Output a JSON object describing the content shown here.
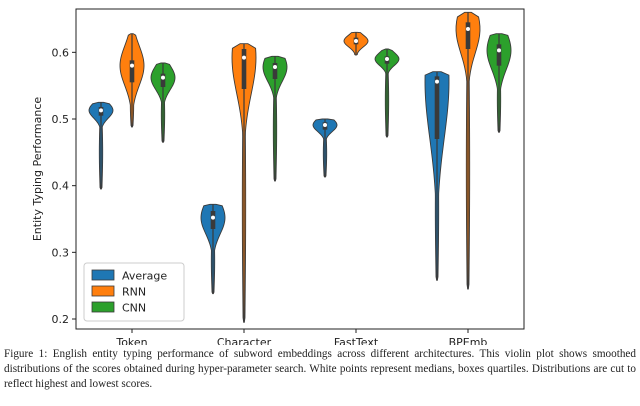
{
  "chart_data": {
    "type": "violin",
    "title": "",
    "xlabel": "",
    "ylabel": "Entity Typing Performance",
    "ylim": [
      0.185,
      0.665
    ],
    "yticks": [
      0.2,
      0.3,
      0.4,
      0.5,
      0.6
    ],
    "ytick_labels": [
      "0.2",
      "0.3",
      "0.4",
      "0.5",
      "0.6"
    ],
    "categories": [
      "Token",
      "Character",
      "FastText",
      "BPEmb"
    ],
    "legend": {
      "placement": "lower-left"
    },
    "series": [
      {
        "name": "Average",
        "color": "#1f77b4",
        "groups": [
          {
            "category": "Token",
            "min": 0.395,
            "max": 0.525,
            "q1": 0.505,
            "median": 0.513,
            "q3": 0.518
          },
          {
            "category": "Character",
            "min": 0.238,
            "max": 0.372,
            "q1": 0.335,
            "median": 0.352,
            "q3": 0.362
          },
          {
            "category": "FastText",
            "min": 0.413,
            "max": 0.5,
            "q1": 0.484,
            "median": 0.491,
            "q3": 0.495
          },
          {
            "category": "BPEmb",
            "min": 0.258,
            "max": 0.571,
            "q1": 0.47,
            "median": 0.556,
            "q3": 0.564
          }
        ]
      },
      {
        "name": "RNN",
        "color": "#ff7f0e",
        "groups": [
          {
            "category": "Token",
            "min": 0.488,
            "max": 0.628,
            "q1": 0.555,
            "median": 0.58,
            "q3": 0.588
          },
          {
            "category": "Character",
            "min": 0.195,
            "max": 0.613,
            "q1": 0.545,
            "median": 0.592,
            "q3": 0.605
          },
          {
            "category": "FastText",
            "min": 0.596,
            "max": 0.63,
            "q1": 0.612,
            "median": 0.617,
            "q3": 0.622
          },
          {
            "category": "BPEmb",
            "min": 0.245,
            "max": 0.66,
            "q1": 0.605,
            "median": 0.635,
            "q3": 0.645
          }
        ]
      },
      {
        "name": "CNN",
        "color": "#2ca02c",
        "groups": [
          {
            "category": "Token",
            "min": 0.465,
            "max": 0.584,
            "q1": 0.548,
            "median": 0.562,
            "q3": 0.568
          },
          {
            "category": "Character",
            "min": 0.407,
            "max": 0.594,
            "q1": 0.56,
            "median": 0.578,
            "q3": 0.584
          },
          {
            "category": "FastText",
            "min": 0.473,
            "max": 0.605,
            "q1": 0.583,
            "median": 0.59,
            "q3": 0.594
          },
          {
            "category": "BPEmb",
            "min": 0.48,
            "max": 0.628,
            "q1": 0.58,
            "median": 0.603,
            "q3": 0.612
          }
        ]
      }
    ]
  },
  "caption": "Figure 1: English entity typing performance of subword embeddings across different architectures. This violin plot shows smoothed distributions of the scores obtained during hyper-parameter search. White points represent medians, boxes quartiles. Distributions are cut to reflect highest and lowest scores."
}
